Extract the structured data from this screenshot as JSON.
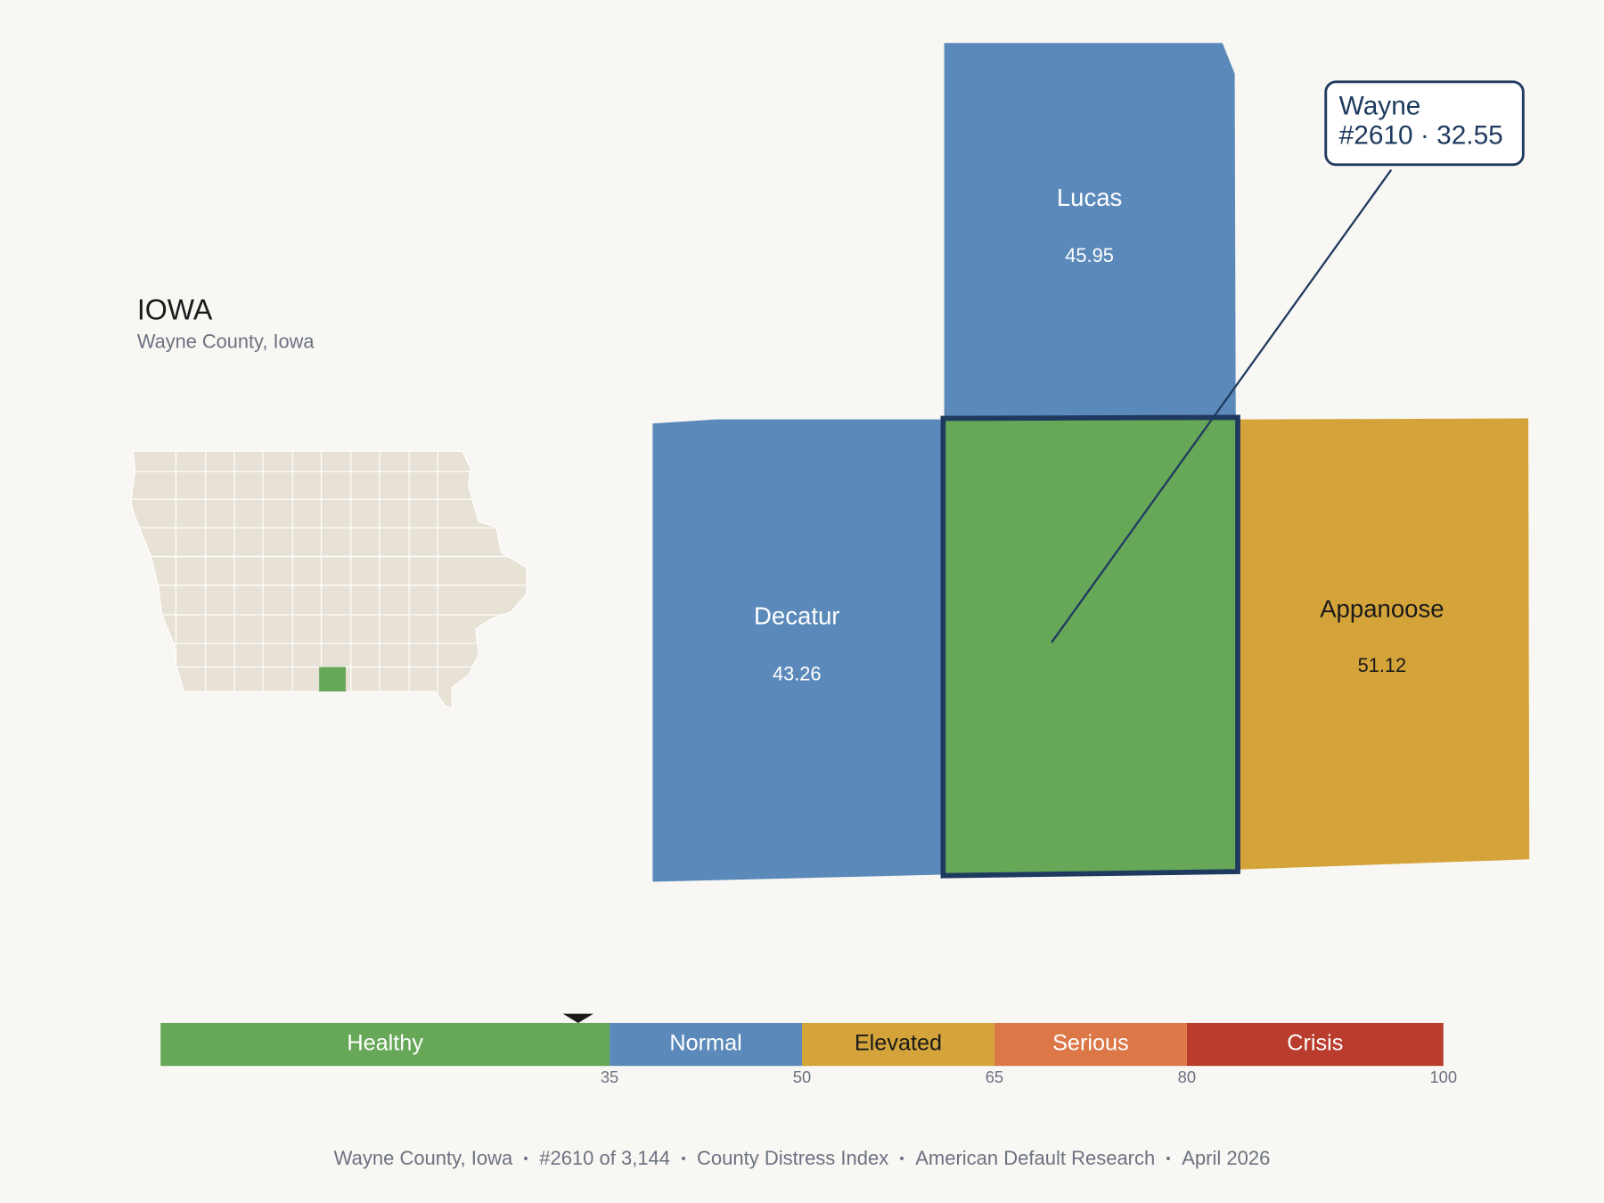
{
  "header": {
    "title": "IOWA",
    "subtitle": "Wayne County, Iowa"
  },
  "focus": {
    "name": "Wayne",
    "detail": "#2610 · 32.55",
    "color": "#66a758",
    "score": 32.55
  },
  "neighbors": [
    {
      "name": "Lucas",
      "value": 45.95,
      "color": "#5b8aba"
    },
    {
      "name": "Decatur",
      "value": 43.26,
      "color": "#5b8aba"
    },
    {
      "name": "Appanoose",
      "value": 51.12,
      "color": "#d4a43a"
    }
  ],
  "scale": {
    "range": [
      0,
      100
    ],
    "ticks": [
      35,
      50,
      65,
      80,
      100
    ],
    "bands": [
      {
        "label": "Healthy",
        "color": "#66a758",
        "text_color": "#ffffff"
      },
      {
        "label": "Normal",
        "color": "#5b8aba",
        "text_color": "#ffffff"
      },
      {
        "label": "Elevated",
        "color": "#d4a43a",
        "text_color": "#1a1a1a"
      },
      {
        "label": "Serious",
        "color": "#dc7848",
        "text_color": "#ffffff"
      },
      {
        "label": "Crisis",
        "color": "#b93c2c",
        "text_color": "#ffffff"
      }
    ]
  },
  "footer": [
    "Wayne County, Iowa",
    "#2610 of 3,144",
    "County Distress Index",
    "American Default Research",
    "April 2026"
  ]
}
